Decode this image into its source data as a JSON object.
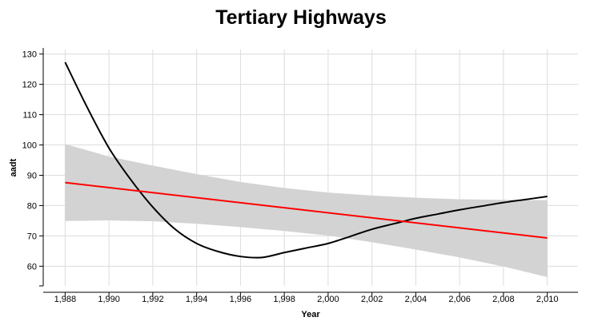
{
  "chart_data": {
    "type": "line",
    "title": "Tertiary Highways",
    "xlabel": "Year",
    "ylabel": "aadt",
    "xlim": [
      1987.0,
      2011.4
    ],
    "ylim": [
      53.5,
      131.5
    ],
    "x_ticks": [
      1988,
      1990,
      1992,
      1994,
      1996,
      1998,
      2000,
      2002,
      2004,
      2006,
      2008,
      2010
    ],
    "x_tick_labels": [
      "1,988",
      "1,990",
      "1,992",
      "1,994",
      "1,996",
      "1,998",
      "2,000",
      "2,002",
      "2,004",
      "2,006",
      "2,008",
      "2,010"
    ],
    "y_ticks": [
      60,
      70,
      80,
      90,
      100,
      110,
      120,
      130
    ],
    "grid": true,
    "series": [
      {
        "kind": "smooth",
        "color": "#000000",
        "x": [
          1988,
          1989,
          1990,
          1991,
          1992,
          1993,
          1994,
          1995,
          1996,
          1997,
          1998,
          1999,
          2000,
          2001,
          2002,
          2003,
          2004,
          2005,
          2006,
          2007,
          2008,
          2009,
          2010
        ],
        "values": [
          127.3,
          112.5,
          99.0,
          88.5,
          79.5,
          72.3,
          67.5,
          64.8,
          63.2,
          62.9,
          64.5,
          66.0,
          67.5,
          69.8,
          72.2,
          74.0,
          75.8,
          77.2,
          78.6,
          79.8,
          81.0,
          82.0,
          83.0
        ]
      },
      {
        "kind": "regression",
        "color": "#ff0000",
        "x": [
          1988,
          2010
        ],
        "values": [
          87.6,
          69.3
        ]
      }
    ],
    "band": {
      "color": "#d3d3d3",
      "x": [
        1988,
        1990,
        1992,
        1994,
        1996,
        1998,
        2000,
        2002,
        2004,
        2006,
        2008,
        2010
      ],
      "upper": [
        100.3,
        96.2,
        93.2,
        90.4,
        87.8,
        85.8,
        84.3,
        83.3,
        82.6,
        82.1,
        81.9,
        81.8
      ],
      "lower": [
        74.9,
        75.1,
        74.8,
        74.0,
        72.9,
        71.6,
        70.1,
        67.9,
        65.5,
        62.9,
        59.9,
        56.4
      ]
    }
  }
}
